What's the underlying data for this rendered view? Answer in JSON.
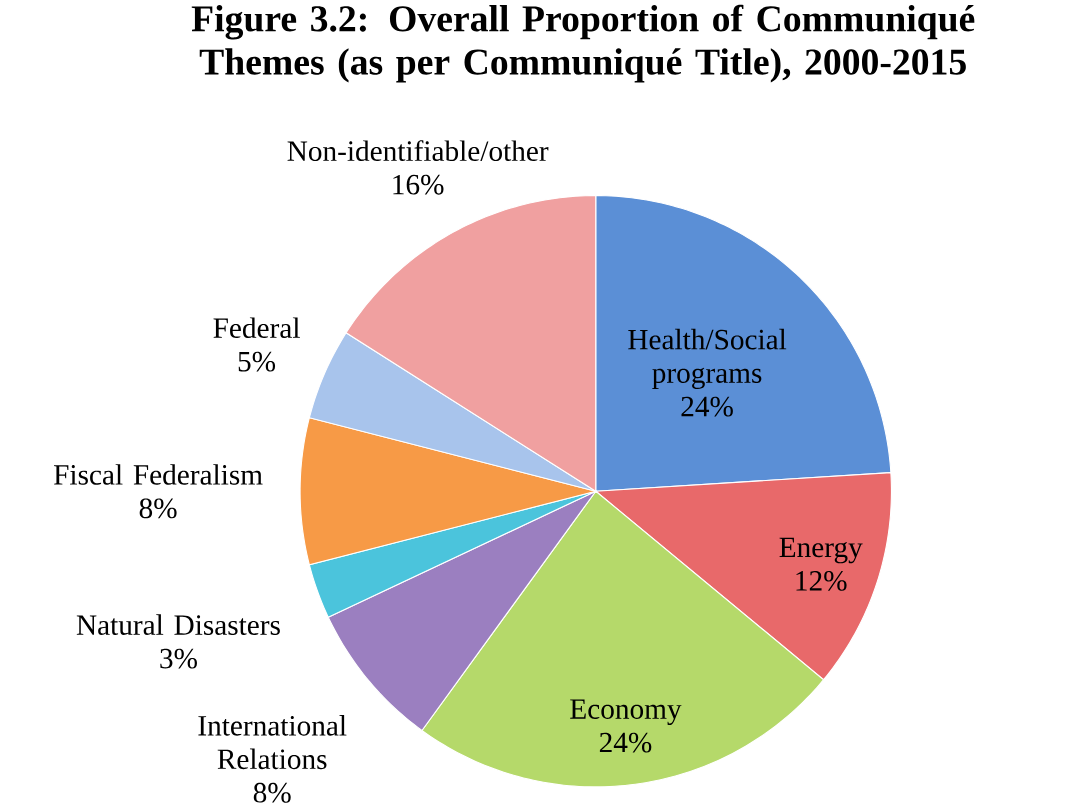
{
  "chart_data": {
    "type": "pie",
    "title": "Figure 3.2: Overall Proportion of Communiqué Themes (as per Communiqué Title), 2000-2015",
    "categories": [
      "Health/Social programs",
      "Energy",
      "Economy",
      "International Relations",
      "Natural Disasters",
      "Fiscal Federalism",
      "Federal",
      "Non-identifiable/other"
    ],
    "values": [
      24,
      12,
      24,
      8,
      3,
      8,
      5,
      16
    ],
    "value_labels": [
      "24%",
      "12%",
      "24%",
      "8%",
      "3%",
      "8%",
      "5%",
      "16%"
    ],
    "colors": [
      "#5b8fd6",
      "#e8696a",
      "#b5d96a",
      "#9b7fc0",
      "#4bc4dc",
      "#f79a46",
      "#a8c4ec",
      "#f0a0a0"
    ]
  }
}
